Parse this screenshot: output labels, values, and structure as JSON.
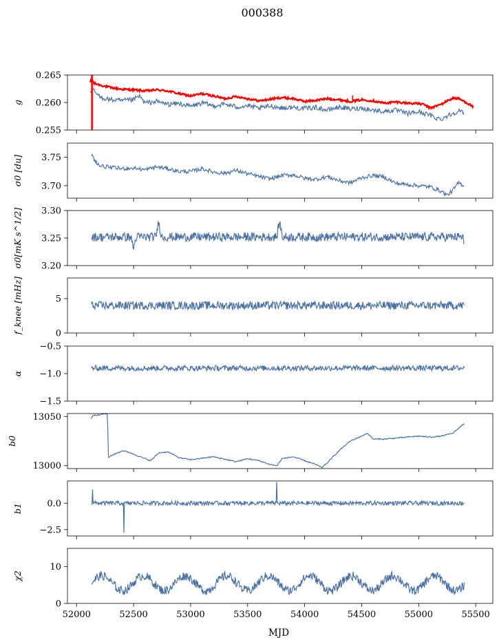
{
  "figure": {
    "title": "000388",
    "xlabel": "MJD"
  },
  "colors": {
    "series": "#4c72a4",
    "highlight": "#ff0000",
    "axes": "#000000"
  },
  "chart_data": [
    {
      "type": "line",
      "ylabel": "g",
      "ylim": [
        0.255,
        0.265
      ],
      "yticks": [
        "0.255",
        "0.260",
        "0.265"
      ],
      "ytick_values": [
        0.255,
        0.26,
        0.265
      ],
      "series": [
        {
          "color": "#ff0000",
          "x": [
            52120,
            52130,
            52150,
            52200,
            52300,
            52400,
            52500,
            52600,
            52700,
            52800,
            52900,
            53000,
            53100,
            53200,
            53300,
            53400,
            53500,
            53600,
            53700,
            53800,
            53900,
            54000,
            54100,
            54200,
            54300,
            54400,
            54500,
            54600,
            54700,
            54800,
            54900,
            55000,
            55050,
            55100,
            55200,
            55250,
            55300,
            55350,
            55400,
            55450,
            55480
          ],
          "y": [
            0.2635,
            0.2645,
            0.2635,
            0.2632,
            0.2627,
            0.2624,
            0.2623,
            0.2621,
            0.2623,
            0.2621,
            0.2616,
            0.2612,
            0.2616,
            0.2612,
            0.2607,
            0.2611,
            0.2607,
            0.2603,
            0.2606,
            0.2609,
            0.2607,
            0.2602,
            0.2604,
            0.2607,
            0.2605,
            0.2602,
            0.2605,
            0.2603,
            0.2599,
            0.2601,
            0.2599,
            0.2598,
            0.2596,
            0.259,
            0.2597,
            0.2603,
            0.2608,
            0.2607,
            0.2602,
            0.2596,
            0.2592
          ]
        },
        {
          "color": "#4c72a4",
          "x": [
            52120,
            52150,
            52200,
            52300,
            52400,
            52500,
            52550,
            52600,
            52700,
            52800,
            52900,
            53000,
            53100,
            53200,
            53300,
            53400,
            53500,
            53600,
            53700,
            53800,
            53900,
            54000,
            54100,
            54200,
            54300,
            54400,
            54500,
            54600,
            54700,
            54800,
            54900,
            55000,
            55100,
            55150,
            55200,
            55250,
            55300,
            55350,
            55400
          ],
          "y": [
            0.2615,
            0.2622,
            0.261,
            0.2605,
            0.2603,
            0.2605,
            0.2612,
            0.2599,
            0.2602,
            0.2597,
            0.2598,
            0.2593,
            0.2599,
            0.2594,
            0.2597,
            0.2592,
            0.2594,
            0.2589,
            0.2594,
            0.259,
            0.2591,
            0.2589,
            0.2591,
            0.2586,
            0.2592,
            0.2588,
            0.259,
            0.2586,
            0.2584,
            0.2586,
            0.258,
            0.2583,
            0.2577,
            0.2572,
            0.257,
            0.2576,
            0.258,
            0.2585,
            0.258
          ]
        }
      ],
      "red_dip": {
        "x": 52135,
        "y": 0.255
      },
      "red_spike": {
        "x": 54420,
        "y": 0.2613
      }
    },
    {
      "type": "line",
      "ylabel": "σ0 [du]",
      "ylim": [
        3.678,
        3.775
      ],
      "yticks": [
        "3.70",
        "3.75"
      ],
      "ytick_values": [
        3.7,
        3.75
      ],
      "series": [
        {
          "color": "#4c72a4",
          "x": [
            52130,
            52150,
            52200,
            52300,
            52400,
            52500,
            52600,
            52700,
            52800,
            52900,
            53000,
            53100,
            53200,
            53300,
            53400,
            53500,
            53600,
            53700,
            53800,
            53900,
            54000,
            54100,
            54200,
            54300,
            54400,
            54500,
            54600,
            54700,
            54800,
            54900,
            55000,
            55100,
            55200,
            55250,
            55300,
            55350,
            55400
          ],
          "y": [
            3.755,
            3.748,
            3.735,
            3.732,
            3.73,
            3.731,
            3.728,
            3.733,
            3.73,
            3.725,
            3.725,
            3.73,
            3.724,
            3.722,
            3.727,
            3.721,
            3.716,
            3.712,
            3.718,
            3.719,
            3.713,
            3.711,
            3.716,
            3.709,
            3.705,
            3.714,
            3.718,
            3.715,
            3.704,
            3.702,
            3.7,
            3.698,
            3.69,
            3.683,
            3.692,
            3.705,
            3.7
          ]
        }
      ]
    },
    {
      "type": "line",
      "ylabel": "σ0[mK s^1/2]",
      "ylim": [
        3.2,
        3.3
      ],
      "yticks": [
        "3.20",
        "3.25",
        "3.30"
      ],
      "ytick_values": [
        3.2,
        3.25,
        3.3
      ],
      "series": [
        {
          "color": "#4c72a4",
          "x_range": [
            52130,
            55400
          ],
          "baseline": 3.252,
          "noise": 0.008,
          "peaks": [
            [
              52720,
              3.28
            ],
            [
              53780,
              3.28
            ],
            [
              52500,
              3.232
            ]
          ],
          "end": 3.24
        }
      ]
    },
    {
      "type": "line",
      "ylabel": "f_knee [mHz]",
      "ylim": [
        0,
        8
      ],
      "yticks": [
        "0",
        "5"
      ],
      "ytick_values": [
        0,
        5
      ],
      "series": [
        {
          "color": "#4c72a4",
          "x_range": [
            52130,
            55400
          ],
          "baseline": 4.0,
          "noise": 0.6
        }
      ]
    },
    {
      "type": "line",
      "ylabel": "α",
      "ylim": [
        -1.5,
        -0.5
      ],
      "yticks": [
        "−1.5",
        "−1.0",
        "−0.5"
      ],
      "ytick_values": [
        -1.5,
        -1.0,
        -0.5
      ],
      "series": [
        {
          "color": "#4c72a4",
          "x_range": [
            52130,
            55400
          ],
          "baseline": -0.9,
          "noise": 0.05
        }
      ]
    },
    {
      "type": "line",
      "ylabel": "b0",
      "ylim": [
        12997,
        13053
      ],
      "yticks": [
        "13000",
        "13050"
      ],
      "ytick_values": [
        13000,
        13050
      ],
      "series": [
        {
          "color": "#4c72a4",
          "x": [
            52130,
            52140,
            52200,
            52270,
            52280,
            52300,
            52400,
            52450,
            52600,
            52650,
            52720,
            52800,
            52900,
            53000,
            53200,
            53400,
            53500,
            53600,
            53700,
            53760,
            53800,
            53900,
            54000,
            54100,
            54150,
            54200,
            54300,
            54400,
            54500,
            54550,
            54600,
            54700,
            54800,
            55000,
            55100,
            55200,
            55300,
            55400
          ],
          "y": [
            13048,
            13051,
            13052,
            13053,
            13008,
            13010,
            13015,
            13014,
            13007,
            13005,
            13013,
            13014,
            13008,
            13006,
            13009,
            13004,
            13007,
            13005,
            13001,
            13000,
            13007,
            13009,
            13005,
            13001,
            12998,
            13003,
            13015,
            13025,
            13030,
            13033,
            13027,
            13027,
            13028,
            13030,
            13029,
            13030,
            13033,
            13043
          ]
        }
      ]
    },
    {
      "type": "line",
      "ylabel": "b1",
      "ylim": [
        -3.1,
        2.1
      ],
      "yticks": [
        "−2.5",
        "0.0"
      ],
      "ytick_values": [
        -2.5,
        0.0
      ],
      "series": [
        {
          "color": "#4c72a4",
          "x_range": [
            52130,
            55400
          ],
          "baseline": 0.0,
          "noise": 0.2,
          "spikes": [
            [
              52415,
              -2.8
            ],
            [
              53755,
              2.0
            ],
            [
              52140,
              1.3
            ]
          ]
        }
      ]
    },
    {
      "type": "line",
      "ylabel": "χ2",
      "ylim": [
        0,
        15
      ],
      "yticks": [
        "0",
        "10"
      ],
      "ytick_values": [
        0,
        10
      ],
      "series": [
        {
          "color": "#4c72a4",
          "x_range": [
            52130,
            55400
          ],
          "baseline": 5.5,
          "noise": 1.2,
          "period": 365,
          "amplitude": 2.0
        }
      ]
    }
  ],
  "xaxis": {
    "lim": [
      51920,
      55650
    ],
    "ticks": [
      "52000",
      "52500",
      "53000",
      "53500",
      "54000",
      "54500",
      "55000",
      "55500"
    ],
    "tick_values": [
      52000,
      52500,
      53000,
      53500,
      54000,
      54500,
      55000,
      55500
    ]
  }
}
